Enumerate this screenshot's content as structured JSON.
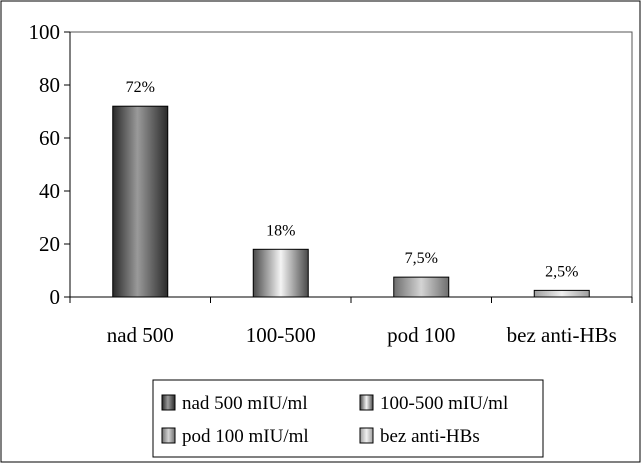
{
  "chart_data": {
    "type": "bar",
    "title": "",
    "xlabel": "",
    "ylabel": "",
    "categories": [
      "nad 500",
      "100-500",
      "pod 100",
      "bez anti-HBs"
    ],
    "values": [
      72,
      18,
      7.5,
      2.5
    ],
    "data_labels": [
      "72%",
      "18%",
      "7,5%",
      "2,5%"
    ],
    "ylim": [
      0,
      100
    ],
    "yticks": [
      0,
      20,
      40,
      60,
      80,
      100
    ],
    "grid": false,
    "legend": {
      "placement": "bottom",
      "entries": [
        "nad 500 mIU/ml",
        "100-500 mIU/ml",
        "pod 100 mIU/ml",
        "bez anti-HBs"
      ]
    },
    "colors": [
      "#4a4a4a",
      "#8a8a8a",
      "#aaaaaa",
      "#cfcfcf"
    ]
  }
}
